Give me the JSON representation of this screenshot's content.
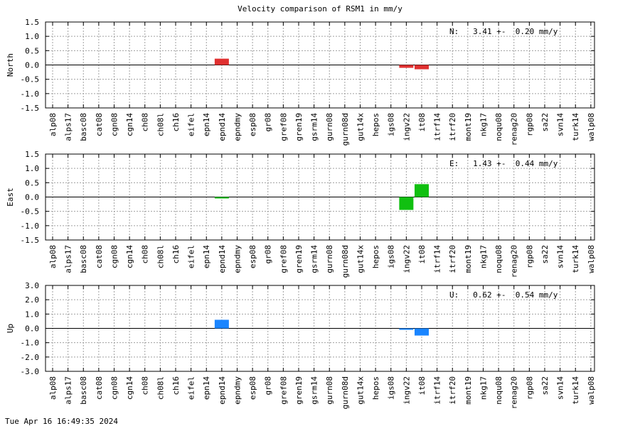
{
  "title": "Velocity comparison of RSM1 in mm/y",
  "footer": "Tue Apr 16 16:49:35 2024",
  "chart_data": {
    "type": "bar",
    "categories": [
      "alp08",
      "alps17",
      "basc08",
      "cat08",
      "cgn08",
      "cgn14",
      "ch08",
      "ch08l",
      "ch16",
      "eifel",
      "epn14",
      "epnd14",
      "epndmy",
      "esp08",
      "gr08",
      "gref08",
      "gren19",
      "gsrm14",
      "gurn08",
      "gurn08d",
      "gut14x",
      "hepos",
      "igs08",
      "ingv22",
      "it08",
      "itrf14",
      "itrf20",
      "mont19",
      "nkg17",
      "noqu08",
      "renag20",
      "rgp08",
      "sa22",
      "svn14",
      "turk14",
      "walp08"
    ],
    "panels": [
      {
        "ylabel": "North",
        "color": "#e03030",
        "ylim": [
          -1.5,
          1.5
        ],
        "yticks": [
          "1.5",
          "1.0",
          "0.5",
          "0.0",
          "-0.5",
          "-1.0",
          "-1.5"
        ],
        "annotation": "N:   3.41 +-  0.20 mm/y",
        "values": [
          null,
          null,
          null,
          null,
          null,
          null,
          null,
          null,
          null,
          null,
          null,
          0.22,
          null,
          null,
          null,
          null,
          null,
          null,
          null,
          null,
          null,
          null,
          null,
          -0.1,
          -0.15,
          null,
          null,
          null,
          null,
          null,
          null,
          null,
          null,
          null,
          null,
          null
        ]
      },
      {
        "ylabel": "East",
        "color": "#10c010",
        "ylim": [
          -1.5,
          1.5
        ],
        "yticks": [
          "1.5",
          "1.0",
          "0.5",
          "0.0",
          "-0.5",
          "-1.0",
          "-1.5"
        ],
        "annotation": "E:   1.43 +-  0.44 mm/y",
        "values": [
          null,
          null,
          null,
          null,
          null,
          null,
          null,
          null,
          null,
          null,
          null,
          -0.05,
          null,
          null,
          null,
          null,
          null,
          null,
          null,
          null,
          null,
          null,
          null,
          -0.45,
          0.45,
          null,
          null,
          null,
          null,
          null,
          null,
          null,
          null,
          null,
          null,
          null
        ]
      },
      {
        "ylabel": "Up",
        "color": "#1a85ff",
        "ylim": [
          -3.0,
          3.0
        ],
        "yticks": [
          "3.0",
          "2.0",
          "1.0",
          "0.0",
          "-1.0",
          "-2.0",
          "-3.0"
        ],
        "annotation": "U:   0.62 +-  0.54 mm/y",
        "values": [
          null,
          null,
          null,
          null,
          null,
          null,
          null,
          null,
          null,
          null,
          null,
          0.6,
          null,
          null,
          null,
          null,
          null,
          null,
          null,
          null,
          null,
          null,
          null,
          -0.05,
          -0.5,
          null,
          null,
          null,
          null,
          null,
          null,
          null,
          null,
          null,
          null,
          null
        ]
      }
    ]
  }
}
